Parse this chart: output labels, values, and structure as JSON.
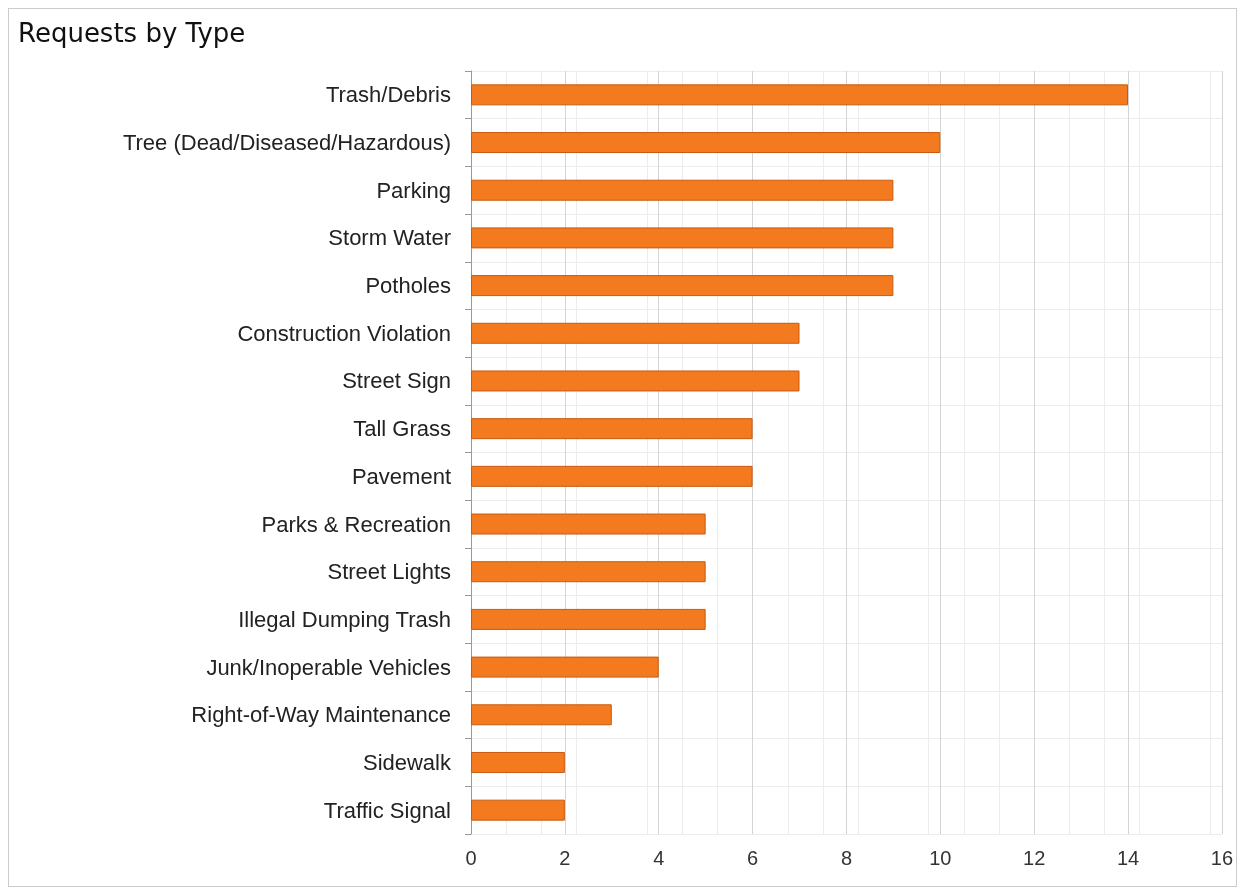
{
  "chart_data": {
    "type": "bar",
    "orientation": "horizontal",
    "title": "Requests by Type",
    "categories": [
      "Trash/Debris",
      "Tree (Dead/Diseased/Hazardous)",
      "Parking",
      "Storm Water",
      "Potholes",
      "Construction Violation",
      "Street Sign",
      "Tall Grass",
      "Pavement",
      "Parks & Recreation",
      "Street Lights",
      "Illegal Dumping Trash",
      "Junk/Inoperable Vehicles",
      "Right-of-Way Maintenance",
      "Sidewalk",
      "Traffic Signal"
    ],
    "values": [
      14,
      10,
      9,
      9,
      9,
      7,
      7,
      6,
      6,
      5,
      5,
      5,
      4,
      3,
      2,
      2
    ],
    "color": "#f47a1f",
    "xlim": [
      0,
      16
    ],
    "xticks": [
      0,
      2,
      4,
      6,
      8,
      10,
      12,
      14,
      16
    ],
    "grid": true
  }
}
